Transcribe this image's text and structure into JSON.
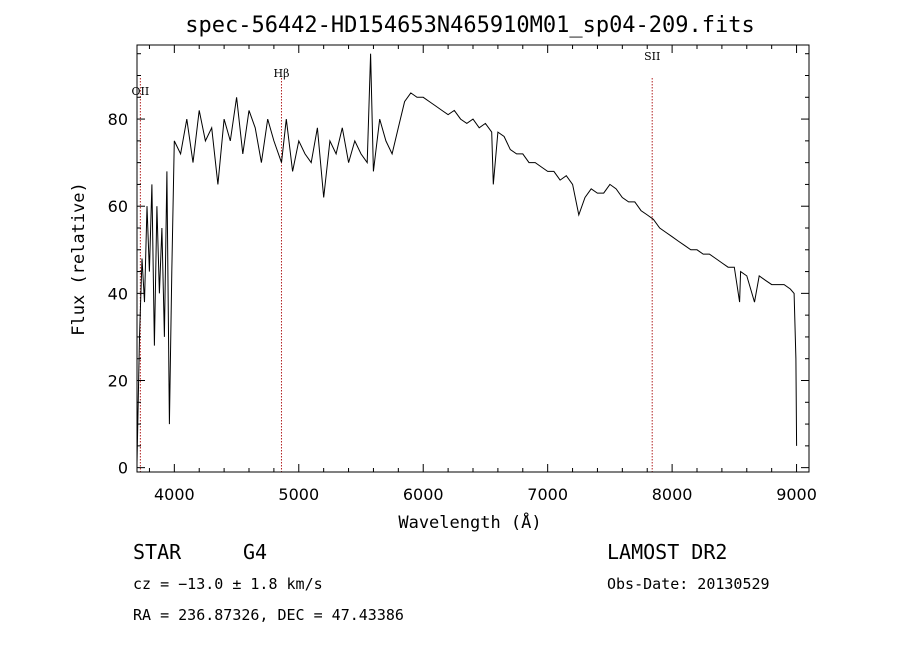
{
  "chart_data": {
    "type": "line",
    "title": "spec-56442-HD154653N465910M01_sp04-209.fits",
    "xlabel": "Wavelength (Å)",
    "ylabel": "Flux (relative)",
    "xlim": [
      3700,
      9100
    ],
    "ylim": [
      -1,
      97
    ],
    "grid": false,
    "x_ticks": [
      4000,
      5000,
      6000,
      7000,
      8000,
      9000
    ],
    "y_ticks": [
      0,
      20,
      40,
      60,
      80
    ],
    "series": [
      {
        "x": [
          3700,
          3720,
          3740,
          3760,
          3780,
          3800,
          3820,
          3840,
          3860,
          3880,
          3900,
          3920,
          3940,
          3960,
          3980,
          4000,
          4050,
          4100,
          4150,
          4200,
          4250,
          4300,
          4350,
          4400,
          4450,
          4500,
          4550,
          4600,
          4650,
          4700,
          4750,
          4800,
          4861,
          4900,
          4950,
          5000,
          5050,
          5100,
          5150,
          5200,
          5250,
          5300,
          5350,
          5400,
          5450,
          5500,
          5550,
          5577,
          5600,
          5650,
          5700,
          5750,
          5800,
          5850,
          5900,
          5950,
          6000,
          6050,
          6100,
          6150,
          6200,
          6250,
          6300,
          6350,
          6400,
          6450,
          6500,
          6550,
          6563,
          6600,
          6650,
          6700,
          6750,
          6800,
          6850,
          6900,
          6950,
          7000,
          7050,
          7100,
          7150,
          7200,
          7250,
          7300,
          7350,
          7400,
          7450,
          7500,
          7550,
          7600,
          7650,
          7700,
          7750,
          7800,
          7850,
          7900,
          7950,
          8000,
          8050,
          8100,
          8150,
          8200,
          8250,
          8300,
          8350,
          8400,
          8450,
          8500,
          8542,
          8550,
          8600,
          8662,
          8700,
          8750,
          8800,
          8850,
          8900,
          8950,
          8980,
          8995,
          9000
        ],
        "values": [
          1,
          30,
          48,
          38,
          60,
          45,
          65,
          28,
          60,
          40,
          55,
          30,
          68,
          10,
          45,
          75,
          72,
          80,
          70,
          82,
          75,
          78,
          65,
          80,
          75,
          85,
          72,
          82,
          78,
          70,
          80,
          75,
          70,
          80,
          68,
          75,
          72,
          70,
          78,
          62,
          75,
          72,
          78,
          70,
          75,
          72,
          70,
          95,
          68,
          80,
          75,
          72,
          78,
          84,
          86,
          85,
          85,
          84,
          83,
          82,
          81,
          82,
          80,
          79,
          80,
          78,
          79,
          77,
          65,
          77,
          76,
          73,
          72,
          72,
          70,
          70,
          69,
          68,
          68,
          66,
          67,
          65,
          58,
          62,
          64,
          63,
          63,
          65,
          64,
          62,
          61,
          61,
          59,
          58,
          57,
          55,
          54,
          53,
          52,
          51,
          50,
          50,
          49,
          49,
          48,
          47,
          46,
          46,
          38,
          45,
          44,
          38,
          44,
          43,
          42,
          42,
          42,
          41,
          40,
          25,
          5
        ]
      }
    ],
    "line_markers": [
      {
        "label": "OII",
        "wavelength": 3727
      },
      {
        "label": "Hβ",
        "wavelength": 4861
      },
      {
        "label": "SII",
        "wavelength": 7840
      }
    ]
  },
  "info": {
    "object_type": "STAR",
    "subclass": "G4",
    "redshift": "cz = −13.0 ± 1.8 km/s",
    "coords": "RA = 236.87326, DEC =  47.43386",
    "survey": "LAMOST DR2",
    "obs_date": "Obs-Date: 20130529"
  },
  "colors": {
    "spectrum": "#000000",
    "marker_line": "#b22222",
    "axes": "#000000"
  }
}
